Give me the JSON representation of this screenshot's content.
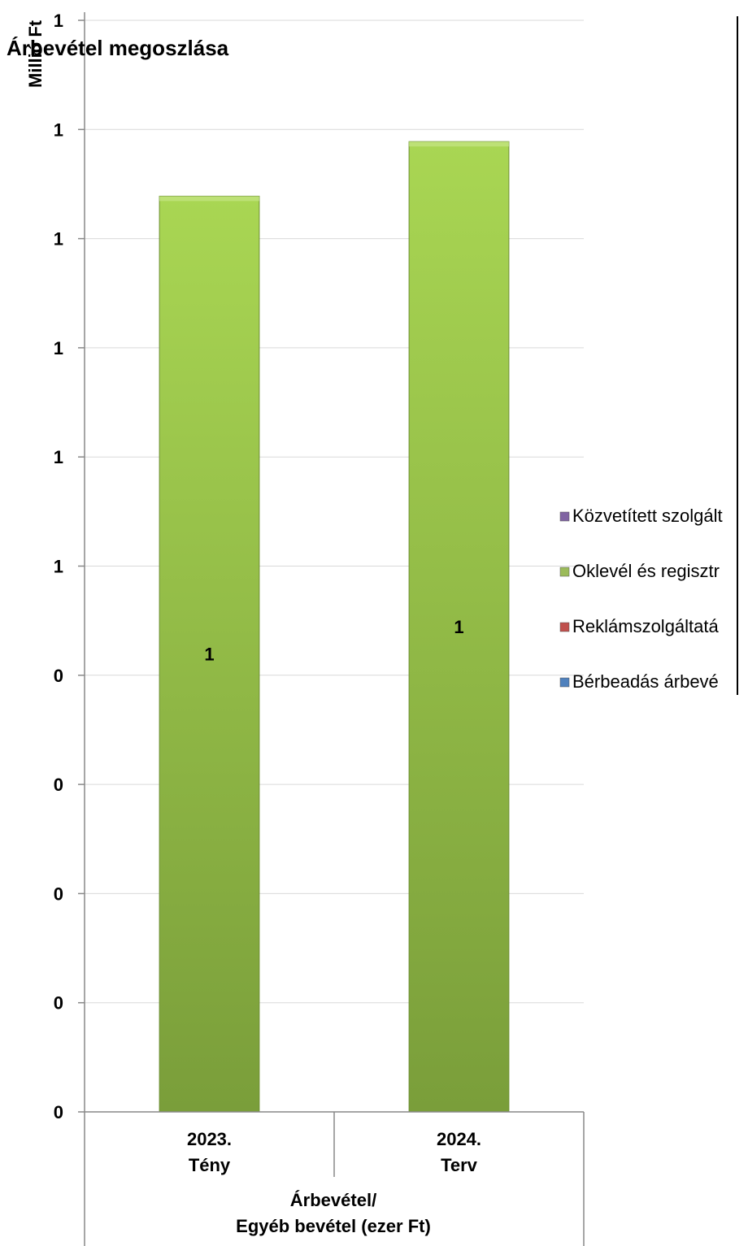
{
  "chart_data": {
    "type": "bar",
    "title": "Árbevétel megoszlása",
    "ylabel": "Millió Ft",
    "y_tick_labels": [
      "0",
      "0",
      "0",
      "0",
      "0",
      "1",
      "1",
      "1",
      "1",
      "1"
    ],
    "categories": [
      {
        "line1": "2023.",
        "line2": "Tény"
      },
      {
        "line1": "2024.",
        "line2": "Terv"
      }
    ],
    "group_label": {
      "line1": "Árbevétel/",
      "line2": "Egyéb bevétel (ezer Ft)"
    },
    "ylim": [
      0,
      9
    ],
    "series": [
      {
        "name": "Oklevél és regisztr",
        "values": [
          7.55,
          8.0
        ],
        "labels": [
          "1",
          "1"
        ],
        "color": "#8db544"
      }
    ],
    "legend": [
      {
        "name": "Közvetített szolgált",
        "color": "#8064a2"
      },
      {
        "name": "Oklevél és regisztr",
        "color": "#9bbb59"
      },
      {
        "name": "Reklámszolgáltatá",
        "color": "#c0504d"
      },
      {
        "name": "Bérbeadás árbevé",
        "color": "#4f81bd"
      }
    ],
    "legend_position": "right",
    "grid": true
  }
}
